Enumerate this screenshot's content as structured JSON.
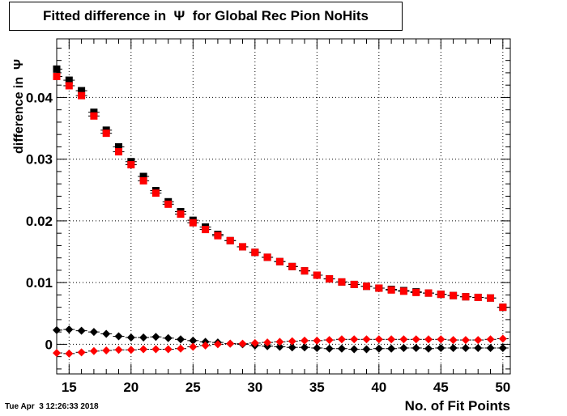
{
  "chart_data": {
    "type": "scatter",
    "title": "Fitted difference in  Ψ  for Global Rec Pion NoHits",
    "xlabel": "No. of Fit Points",
    "ylabel": "difference in  Ψ",
    "xlim": [
      14,
      50.6
    ],
    "ylim": [
      -0.0048,
      0.0495
    ],
    "grid": true,
    "x_ticks": [
      "15",
      "20",
      "25",
      "30",
      "35",
      "40",
      "45",
      "50"
    ],
    "y_ticks": [
      "0",
      "0.01",
      "0.02",
      "0.03",
      "0.04"
    ],
    "series": [
      {
        "marker": "square",
        "color": "#000000",
        "x": [
          14,
          15,
          16,
          17,
          18,
          19,
          20,
          21,
          22,
          23,
          24,
          25,
          26,
          27,
          28,
          29,
          30,
          31,
          32,
          33,
          34,
          35,
          36,
          37,
          38,
          39,
          40,
          41,
          42,
          43,
          44,
          45,
          46,
          47,
          48,
          49,
          50
        ],
        "y": [
          0.0446,
          0.0428,
          0.0411,
          0.0376,
          0.0347,
          0.032,
          0.0296,
          0.0272,
          0.0249,
          0.0231,
          0.0215,
          0.0201,
          0.019,
          0.0178,
          0.0168,
          0.0158,
          0.0149,
          0.0141,
          0.0134,
          0.0126,
          0.0119,
          0.0112,
          0.0106,
          0.0101,
          0.0097,
          0.0094,
          0.0091,
          0.0089,
          0.0087,
          0.0085,
          0.0083,
          0.0081,
          0.0079,
          0.0077,
          0.0076,
          0.0075,
          0.006
        ]
      },
      {
        "marker": "square",
        "color": "#ff0000",
        "x": [
          14,
          15,
          16,
          17,
          18,
          19,
          20,
          21,
          22,
          23,
          24,
          25,
          26,
          27,
          28,
          29,
          30,
          31,
          32,
          33,
          34,
          35,
          36,
          37,
          38,
          39,
          40,
          41,
          42,
          43,
          44,
          45,
          46,
          47,
          48,
          49,
          50
        ],
        "y": [
          0.0434,
          0.0419,
          0.0403,
          0.037,
          0.0342,
          0.0312,
          0.0291,
          0.0265,
          0.0245,
          0.0227,
          0.0211,
          0.0197,
          0.0186,
          0.0176,
          0.0168,
          0.0158,
          0.0149,
          0.0141,
          0.0134,
          0.0126,
          0.0119,
          0.0112,
          0.0106,
          0.0101,
          0.0097,
          0.0094,
          0.0091,
          0.0088,
          0.0086,
          0.0084,
          0.0083,
          0.0081,
          0.0079,
          0.0077,
          0.0076,
          0.0075,
          0.006
        ]
      },
      {
        "marker": "diamond",
        "color": "#000000",
        "x": [
          14,
          15,
          16,
          17,
          18,
          19,
          20,
          21,
          22,
          23,
          24,
          25,
          26,
          27,
          28,
          29,
          30,
          31,
          32,
          33,
          34,
          35,
          36,
          37,
          38,
          39,
          40,
          41,
          42,
          43,
          44,
          45,
          46,
          47,
          48,
          49,
          50
        ],
        "y": [
          0.0023,
          0.0024,
          0.0022,
          0.002,
          0.0017,
          0.0013,
          0.0011,
          0.0011,
          0.0012,
          0.001,
          0.0008,
          0.0006,
          0.0004,
          0.0003,
          0.0001,
          0.0,
          -0.0002,
          -0.0003,
          -0.0004,
          -0.0005,
          -0.0005,
          -0.0006,
          -0.0007,
          -0.0007,
          -0.0008,
          -0.0008,
          -0.0007,
          -0.0007,
          -0.0006,
          -0.0006,
          -0.0007,
          -0.0006,
          -0.0006,
          -0.0006,
          -0.0006,
          -0.0006,
          -0.0006
        ]
      },
      {
        "marker": "diamond",
        "color": "#ff0000",
        "x": [
          14,
          15,
          16,
          17,
          18,
          19,
          20,
          21,
          22,
          23,
          24,
          25,
          26,
          27,
          28,
          29,
          30,
          31,
          32,
          33,
          34,
          35,
          36,
          37,
          38,
          39,
          40,
          41,
          42,
          43,
          44,
          45,
          46,
          47,
          48,
          49,
          50
        ],
        "y": [
          -0.0014,
          -0.0015,
          -0.0013,
          -0.0011,
          -0.001,
          -0.0009,
          -0.0009,
          -0.0008,
          -0.0008,
          -0.0008,
          -0.0007,
          -0.0004,
          -0.0002,
          0.0,
          0.0001,
          0.0001,
          0.0002,
          0.0003,
          0.0004,
          0.0005,
          0.0006,
          0.0006,
          0.0007,
          0.0008,
          0.0008,
          0.0008,
          0.0008,
          0.0008,
          0.0008,
          0.0008,
          0.0008,
          0.0008,
          0.0007,
          0.0007,
          0.0007,
          0.0008,
          0.0009
        ]
      }
    ]
  },
  "footer": {
    "timestamp": "Tue Apr  3 12:26:33 2018"
  }
}
